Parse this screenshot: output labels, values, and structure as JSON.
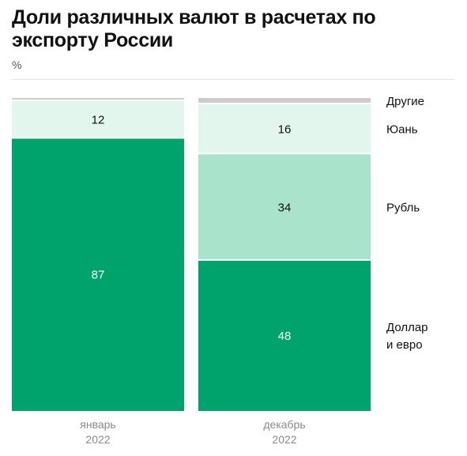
{
  "title": "Доли различных валют в расчетах по экспорту России",
  "unit": "%",
  "chart_data": {
    "type": "bar",
    "stacked": true,
    "title": "Доли различных валют в расчетах по экспорту России",
    "ylabel": "%",
    "ylim": [
      0,
      100
    ],
    "grid": false,
    "legend_placement": "right",
    "categories": [
      {
        "line1": "январь",
        "line2": "2022"
      },
      {
        "line1": "декабрь",
        "line2": "2022"
      }
    ],
    "series": [
      {
        "name": "Доллар и евро",
        "legend_lines": [
          "Доллар",
          "и евро"
        ],
        "values": [
          87,
          48
        ],
        "labels": [
          "87",
          "48"
        ],
        "color": "#00a36c",
        "label_color": "#ffffff"
      },
      {
        "name": "Рубль",
        "legend_lines": [
          "Рубль"
        ],
        "values": [
          0,
          34
        ],
        "labels": [
          "",
          "34"
        ],
        "color": "#aae3cb",
        "label_color": "#111111"
      },
      {
        "name": "Юань",
        "legend_lines": [
          "Юань"
        ],
        "values": [
          12,
          16
        ],
        "labels": [
          "12",
          "16"
        ],
        "color": "#e3f6ed",
        "label_color": "#111111"
      },
      {
        "name": "Другие",
        "legend_lines": [
          "Другие"
        ],
        "values": [
          1,
          2
        ],
        "labels": [
          "",
          ""
        ],
        "color": "#cccccc",
        "label_color": "#111111"
      }
    ]
  }
}
